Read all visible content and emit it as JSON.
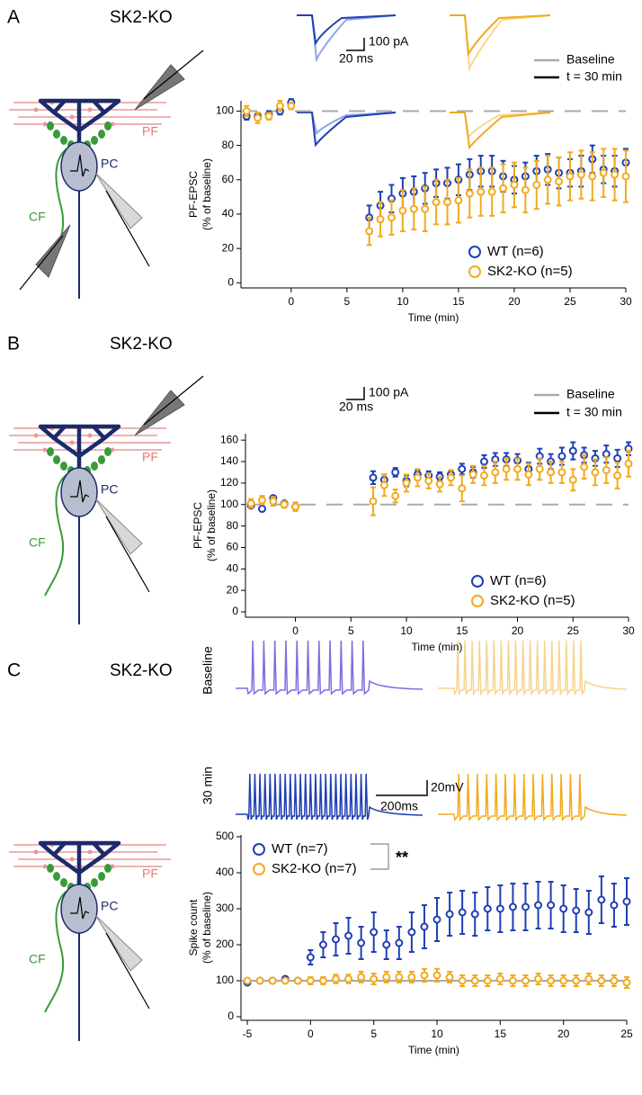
{
  "panels": [
    {
      "label": "A",
      "title": "SK2-KO",
      "diagram": {
        "pf": "PF",
        "pc": "PC",
        "cf": "CF"
      },
      "scale_bar": {
        "y": "100 pA",
        "x": "20 ms"
      },
      "trace_legend": [
        "Baseline",
        "t = 30 min"
      ]
    },
    {
      "label": "B",
      "title": "SK2-KO",
      "diagram": {
        "pf": "PF",
        "pc": "PC",
        "cf": "CF"
      },
      "scale_bar": {
        "y": "100 pA",
        "x": "20 ms"
      },
      "trace_legend": [
        "Baseline",
        "t = 30 min"
      ]
    },
    {
      "label": "C",
      "title": "SK2-KO",
      "diagram": {
        "pf": "PF",
        "pc": "PC",
        "cf": "CF"
      },
      "scale_bar": {
        "y": "20mV",
        "x": "200ms"
      },
      "row_labels": [
        "Baseline",
        "30 min"
      ],
      "significance": "**"
    }
  ],
  "chart_data": [
    {
      "type": "scatter",
      "xlabel": "Time (min)",
      "ylabel": [
        "PF-EPSC",
        "(% of baseline)"
      ],
      "xlim": [
        -4.5,
        30
      ],
      "ylim": [
        -3,
        106
      ],
      "xticks": [
        0,
        5,
        10,
        15,
        20,
        25,
        30
      ],
      "yticks": [
        0,
        20,
        40,
        60,
        80,
        100
      ],
      "hline": 100,
      "hline_style": "dashed",
      "legend": "lower right",
      "series": [
        {
          "name": "WT (n=6)",
          "color": "#1f3fb4",
          "x": [
            -4,
            -3,
            -2,
            -1,
            0,
            7,
            8,
            9,
            10,
            11,
            12,
            13,
            14,
            15,
            16,
            17,
            18,
            19,
            20,
            21,
            22,
            23,
            24,
            25,
            26,
            27,
            28,
            29,
            30
          ],
          "values": [
            97,
            97,
            98,
            100,
            105,
            38,
            45,
            49,
            52,
            53,
            55,
            58,
            58,
            60,
            63,
            65,
            65,
            62,
            60,
            62,
            65,
            66,
            64,
            64,
            65,
            72,
            66,
            65,
            70
          ],
          "errors": [
            2,
            2,
            2,
            2,
            2,
            7,
            8,
            8,
            9,
            9,
            9,
            8,
            9,
            9,
            9,
            9,
            9,
            9,
            8,
            8,
            9,
            9,
            9,
            8,
            9,
            8,
            8,
            9,
            8
          ]
        },
        {
          "name": "SK2-KO (n=5)",
          "color": "#f2aa1c",
          "x": [
            -4,
            -3,
            -2,
            -1,
            0,
            7,
            8,
            9,
            10,
            11,
            12,
            13,
            14,
            15,
            16,
            17,
            18,
            19,
            20,
            21,
            22,
            23,
            24,
            25,
            26,
            27,
            28,
            29,
            30
          ],
          "values": [
            100,
            96,
            97,
            103,
            103,
            30,
            37,
            38,
            42,
            43,
            43,
            47,
            47,
            48,
            52,
            53,
            53,
            55,
            57,
            54,
            57,
            60,
            59,
            62,
            63,
            62,
            64,
            63,
            62
          ],
          "errors": [
            3,
            3,
            2,
            3,
            2,
            8,
            10,
            10,
            12,
            12,
            13,
            13,
            13,
            13,
            14,
            14,
            14,
            14,
            13,
            13,
            14,
            14,
            14,
            14,
            14,
            14,
            14,
            15,
            15
          ]
        }
      ]
    },
    {
      "type": "scatter",
      "xlabel": "Time (min)",
      "ylabel": [
        "PF-EPSC",
        "(% of baseline)"
      ],
      "xlim": [
        -4.5,
        30
      ],
      "ylim": [
        -5,
        166
      ],
      "xticks": [
        0,
        5,
        10,
        15,
        20,
        25,
        30
      ],
      "yticks": [
        0,
        20,
        40,
        60,
        80,
        100,
        120,
        140,
        160
      ],
      "hline": 100,
      "hline_style": "dashed",
      "legend": "lower right",
      "series": [
        {
          "name": "WT (n=6)",
          "color": "#1f3fb4",
          "x": [
            -4,
            -3,
            -2,
            -1,
            0,
            7,
            8,
            9,
            10,
            11,
            12,
            13,
            14,
            15,
            16,
            17,
            18,
            19,
            20,
            21,
            22,
            23,
            24,
            25,
            26,
            27,
            28,
            29,
            30
          ],
          "values": [
            99,
            96,
            106,
            101,
            98,
            125,
            123,
            130,
            122,
            128,
            127,
            126,
            128,
            133,
            130,
            140,
            142,
            142,
            141,
            133,
            145,
            140,
            145,
            150,
            146,
            143,
            147,
            143,
            152
          ],
          "errors": [
            2,
            2,
            2,
            2,
            2,
            6,
            5,
            4,
            5,
            4,
            4,
            4,
            4,
            5,
            5,
            6,
            6,
            6,
            6,
            6,
            7,
            7,
            8,
            8,
            7,
            7,
            8,
            8,
            6
          ]
        },
        {
          "name": "SK2-KO (n=5)",
          "color": "#f2aa1c",
          "x": [
            -4,
            -3,
            -2,
            -1,
            0,
            7,
            8,
            9,
            10,
            11,
            12,
            13,
            14,
            15,
            16,
            17,
            18,
            19,
            20,
            21,
            22,
            23,
            24,
            25,
            26,
            27,
            28,
            29,
            30
          ],
          "values": [
            101,
            104,
            103,
            100,
            98,
            103,
            118,
            108,
            120,
            125,
            122,
            119,
            125,
            115,
            128,
            127,
            130,
            133,
            133,
            128,
            133,
            130,
            130,
            123,
            135,
            130,
            132,
            127,
            138
          ],
          "errors": [
            4,
            4,
            4,
            3,
            4,
            13,
            10,
            6,
            8,
            8,
            7,
            7,
            7,
            12,
            8,
            9,
            10,
            10,
            10,
            10,
            10,
            10,
            10,
            10,
            11,
            12,
            12,
            12,
            12
          ]
        }
      ]
    },
    {
      "type": "scatter",
      "xlabel": "Time (min)",
      "ylabel": [
        "Spike count",
        "(% of baseline)"
      ],
      "xlim": [
        -5.5,
        25
      ],
      "ylim": [
        -10,
        505
      ],
      "xticks": [
        -5,
        0,
        5,
        10,
        15,
        20,
        25
      ],
      "yticks": [
        0,
        100,
        200,
        300,
        400,
        500
      ],
      "hline": 100,
      "hline_style": "solid",
      "legend": "upper left",
      "series": [
        {
          "name": "WT (n=7)",
          "color": "#1f3fb4",
          "x": [
            -5,
            -4,
            -3,
            -2,
            -1,
            0,
            1,
            2,
            3,
            4,
            5,
            6,
            7,
            8,
            9,
            10,
            11,
            12,
            13,
            14,
            15,
            16,
            17,
            18,
            19,
            20,
            21,
            22,
            23,
            24,
            25
          ],
          "values": [
            95,
            100,
            100,
            105,
            100,
            165,
            200,
            215,
            225,
            205,
            235,
            200,
            205,
            235,
            250,
            270,
            285,
            290,
            285,
            300,
            300,
            305,
            305,
            310,
            310,
            300,
            295,
            290,
            325,
            310,
            320
          ],
          "errors": [
            5,
            5,
            5,
            5,
            5,
            20,
            35,
            45,
            50,
            45,
            55,
            40,
            45,
            55,
            60,
            60,
            60,
            60,
            60,
            60,
            65,
            65,
            65,
            65,
            65,
            65,
            60,
            60,
            65,
            60,
            65
          ]
        },
        {
          "name": "SK2-KO (n=7)",
          "color": "#f2aa1c",
          "x": [
            -5,
            -4,
            -3,
            -2,
            -1,
            0,
            1,
            2,
            3,
            4,
            5,
            6,
            7,
            8,
            9,
            10,
            11,
            12,
            13,
            14,
            15,
            16,
            17,
            18,
            19,
            20,
            21,
            22,
            23,
            24,
            25
          ],
          "values": [
            100,
            100,
            100,
            100,
            100,
            100,
            100,
            105,
            105,
            110,
            105,
            110,
            110,
            110,
            115,
            115,
            110,
            100,
            100,
            100,
            105,
            100,
            100,
            105,
            100,
            100,
            100,
            105,
            100,
            100,
            95
          ],
          "errors": [
            5,
            5,
            5,
            5,
            5,
            10,
            10,
            12,
            12,
            15,
            15,
            15,
            15,
            15,
            18,
            18,
            15,
            15,
            15,
            15,
            15,
            15,
            15,
            15,
            15,
            15,
            15,
            15,
            15,
            15,
            15
          ]
        }
      ]
    }
  ]
}
